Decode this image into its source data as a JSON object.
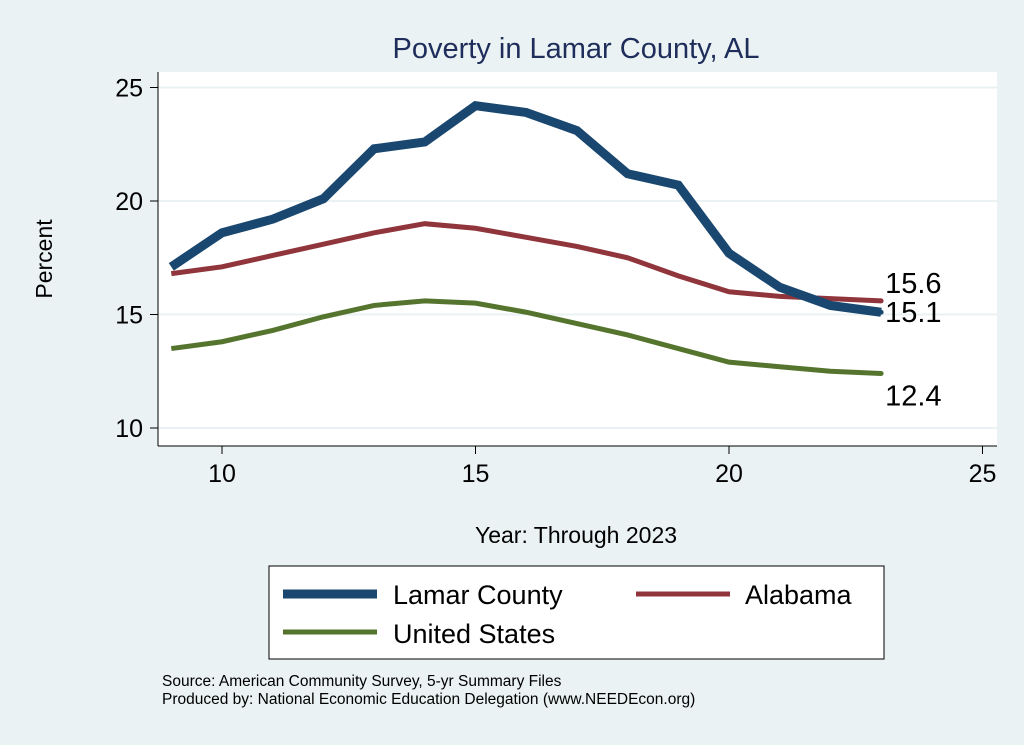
{
  "chart_data": {
    "type": "line",
    "title": "Poverty in Lamar County, AL",
    "xlabel": "Year: Through 2023",
    "ylabel": "Percent",
    "xlim": [
      9,
      25
    ],
    "ylim": [
      9.2,
      25.7
    ],
    "xticks": [
      10,
      15,
      20,
      25
    ],
    "yticks": [
      10,
      15,
      20,
      25
    ],
    "grid": true,
    "legend_position": "bottom",
    "x": [
      9,
      10,
      11,
      12,
      13,
      14,
      15,
      16,
      17,
      18,
      19,
      20,
      21,
      22,
      23
    ],
    "series": [
      {
        "name": "Lamar County",
        "color": "#1a476f",
        "values": [
          17.1,
          18.6,
          19.2,
          20.1,
          22.3,
          22.6,
          24.2,
          23.9,
          23.1,
          21.2,
          20.7,
          17.7,
          16.2,
          15.4,
          15.1
        ],
        "end_label": "15.1"
      },
      {
        "name": "Alabama",
        "color": "#90353b",
        "values": [
          16.8,
          17.1,
          17.6,
          18.1,
          18.6,
          19.0,
          18.8,
          18.4,
          18.0,
          17.5,
          16.7,
          16.0,
          15.8,
          15.7,
          15.6
        ],
        "end_label": "15.6"
      },
      {
        "name": "United States",
        "color": "#55752f",
        "values": [
          13.5,
          13.8,
          14.3,
          14.9,
          15.4,
          15.6,
          15.5,
          15.1,
          14.6,
          14.1,
          13.5,
          12.9,
          12.7,
          12.5,
          12.4
        ],
        "end_label": "12.4"
      }
    ]
  },
  "notes": {
    "source": "Source: American Community Survey, 5-yr Summary Files",
    "produced": "Produced by: National Economic Education Delegation (www.NEEDEcon.org)"
  }
}
